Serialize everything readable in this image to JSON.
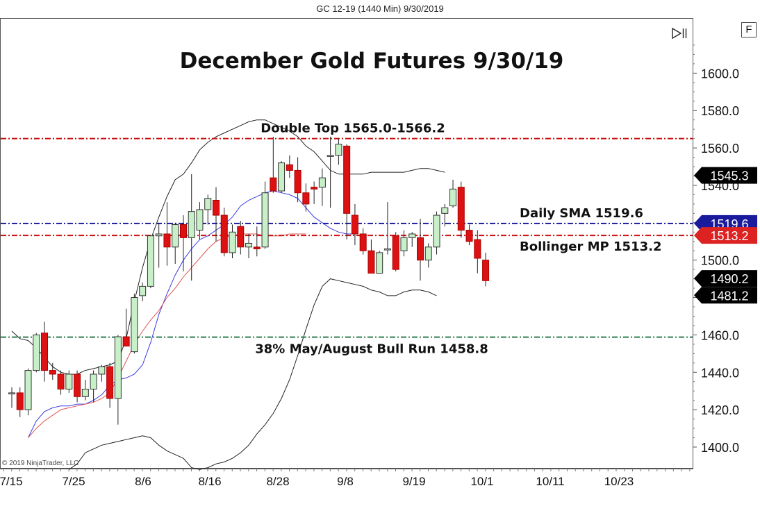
{
  "window_title": "GC 12-19 (1440 Min)  9/30/2019",
  "f_button_label": "F",
  "copyright": "© 2019 NinjaTrader, LLC",
  "colors": {
    "up_candle": "#c8f0c8",
    "down_candle": "#dd1111",
    "resistance_line": "#cc1111",
    "sma_line": "#1a1a9c",
    "fib_line": "#2e7d4f",
    "bollinger_band": "#222222",
    "sma_curve": "#3a3ae0",
    "ema_curve": "#e05555",
    "price_tag_black": "#000000",
    "price_tag_blue": "#1a1a9c",
    "price_tag_red": "#dd2222"
  },
  "icons": {
    "scroll_end": "scroll-to-end-icon"
  },
  "chart_data": {
    "type": "candlestick",
    "title": "December Gold Futures 9/30/19",
    "instrument": "GC 12-19",
    "x_tick_labels": [
      "7/15",
      "7/25",
      "8/6",
      "8/16",
      "8/28",
      "9/8",
      "9/19",
      "10/1",
      "10/11",
      "10/23"
    ],
    "y_tick_labels": [
      "1400.0",
      "1420.0",
      "1440.0",
      "1460.0",
      "1480.0",
      "1500.0",
      "1520.0",
      "1540.0",
      "1560.0",
      "1580.0",
      "1600.0"
    ],
    "ylim": [
      1387,
      1622
    ],
    "candles": [
      {
        "date": "7/17",
        "o": 1429,
        "h": 1432,
        "l": 1421,
        "c": 1429
      },
      {
        "date": "7/18",
        "o": 1429,
        "h": 1432,
        "l": 1416,
        "c": 1420
      },
      {
        "date": "7/19",
        "o": 1420,
        "h": 1442,
        "l": 1417,
        "c": 1441
      },
      {
        "date": "7/22",
        "o": 1441,
        "h": 1461,
        "l": 1440,
        "c": 1460
      },
      {
        "date": "7/23",
        "o": 1461,
        "h": 1467,
        "l": 1435,
        "c": 1441
      },
      {
        "date": "7/24",
        "o": 1441,
        "h": 1445,
        "l": 1436,
        "c": 1439
      },
      {
        "date": "7/25",
        "o": 1439,
        "h": 1441,
        "l": 1428,
        "c": 1431
      },
      {
        "date": "7/26",
        "o": 1431,
        "h": 1441,
        "l": 1429,
        "c": 1439
      },
      {
        "date": "7/29",
        "o": 1439,
        "h": 1441,
        "l": 1424,
        "c": 1427
      },
      {
        "date": "7/30",
        "o": 1427,
        "h": 1436,
        "l": 1425,
        "c": 1431
      },
      {
        "date": "7/31",
        "o": 1431,
        "h": 1441,
        "l": 1424,
        "c": 1439
      },
      {
        "date": "8/1",
        "o": 1439,
        "h": 1444,
        "l": 1435,
        "c": 1443
      },
      {
        "date": "8/2",
        "o": 1443,
        "h": 1445,
        "l": 1421,
        "c": 1426
      },
      {
        "date": "8/5",
        "o": 1426,
        "h": 1460,
        "l": 1412,
        "c": 1459
      },
      {
        "date": "8/6",
        "o": 1459,
        "h": 1474,
        "l": 1454,
        "c": 1454
      },
      {
        "date": "8/7",
        "o": 1451,
        "h": 1482,
        "l": 1450,
        "c": 1480
      },
      {
        "date": "8/8",
        "o": 1481,
        "h": 1488,
        "l": 1478,
        "c": 1486
      },
      {
        "date": "8/9",
        "o": 1486,
        "h": 1513,
        "l": 1485,
        "c": 1513
      },
      {
        "date": "8/12",
        "o": 1513,
        "h": 1520,
        "l": 1496,
        "c": 1514
      },
      {
        "date": "8/13",
        "o": 1514,
        "h": 1531,
        "l": 1497,
        "c": 1507
      },
      {
        "date": "8/14",
        "o": 1507,
        "h": 1520,
        "l": 1498,
        "c": 1519
      },
      {
        "date": "8/15",
        "o": 1519,
        "h": 1524,
        "l": 1494,
        "c": 1512
      },
      {
        "date": "8/16",
        "o": 1512,
        "h": 1546,
        "l": 1489,
        "c": 1526
      },
      {
        "date": "8/19",
        "o": 1516,
        "h": 1531,
        "l": 1511,
        "c": 1527
      },
      {
        "date": "8/20",
        "o": 1527,
        "h": 1535,
        "l": 1519,
        "c": 1533
      },
      {
        "date": "8/21",
        "o": 1532,
        "h": 1539,
        "l": 1510,
        "c": 1524
      },
      {
        "date": "8/22",
        "o": 1524,
        "h": 1528,
        "l": 1502,
        "c": 1504
      },
      {
        "date": "8/23",
        "o": 1504,
        "h": 1519,
        "l": 1501,
        "c": 1515
      },
      {
        "date": "8/26",
        "o": 1518,
        "h": 1521,
        "l": 1503,
        "c": 1507
      },
      {
        "date": "8/27",
        "o": 1507,
        "h": 1514,
        "l": 1501,
        "c": 1509
      },
      {
        "date": "8/28",
        "o": 1507,
        "h": 1518,
        "l": 1502,
        "c": 1506
      },
      {
        "date": "8/29",
        "o": 1507,
        "h": 1542,
        "l": 1506,
        "c": 1536
      },
      {
        "date": "8/30",
        "o": 1544,
        "h": 1566,
        "l": 1536,
        "c": 1537
      },
      {
        "date": "9/2",
        "o": 1537,
        "h": 1553,
        "l": 1536,
        "c": 1552
      },
      {
        "date": "9/3",
        "o": 1551,
        "h": 1556,
        "l": 1544,
        "c": 1548
      },
      {
        "date": "9/4",
        "o": 1548,
        "h": 1555,
        "l": 1531,
        "c": 1536
      },
      {
        "date": "9/5",
        "o": 1536,
        "h": 1541,
        "l": 1526,
        "c": 1530
      },
      {
        "date": "9/6",
        "o": 1539,
        "h": 1542,
        "l": 1530,
        "c": 1538
      },
      {
        "date": "9/9",
        "o": 1539,
        "h": 1549,
        "l": 1529,
        "c": 1544
      },
      {
        "date": "9/10",
        "o": 1556,
        "h": 1566,
        "l": 1528,
        "c": 1556
      },
      {
        "date": "9/11",
        "o": 1556,
        "h": 1565,
        "l": 1551,
        "c": 1562
      },
      {
        "date": "9/12",
        "o": 1561,
        "h": 1562,
        "l": 1511,
        "c": 1525
      },
      {
        "date": "9/13",
        "o": 1524,
        "h": 1530,
        "l": 1508,
        "c": 1514
      },
      {
        "date": "9/16",
        "o": 1514,
        "h": 1517,
        "l": 1503,
        "c": 1505
      },
      {
        "date": "9/17",
        "o": 1505,
        "h": 1511,
        "l": 1494,
        "c": 1493
      },
      {
        "date": "9/18",
        "o": 1493,
        "h": 1505,
        "l": 1493,
        "c": 1504
      },
      {
        "date": "9/19",
        "o": 1506,
        "h": 1531,
        "l": 1503,
        "c": 1506
      },
      {
        "date": "9/20",
        "o": 1513,
        "h": 1515,
        "l": 1494,
        "c": 1495
      },
      {
        "date": "9/23",
        "o": 1505,
        "h": 1516,
        "l": 1502,
        "c": 1512
      },
      {
        "date": "9/24",
        "o": 1512,
        "h": 1515,
        "l": 1507,
        "c": 1514
      },
      {
        "date": "9/25",
        "o": 1512,
        "h": 1522,
        "l": 1489,
        "c": 1500
      },
      {
        "date": "9/26",
        "o": 1500,
        "h": 1509,
        "l": 1496,
        "c": 1507
      },
      {
        "date": "9/27",
        "o": 1507,
        "h": 1526,
        "l": 1503,
        "c": 1524
      },
      {
        "date": "9/30",
        "o": 1525,
        "h": 1530,
        "l": 1518,
        "c": 1528
      },
      {
        "date": "10/1",
        "o": 1529,
        "h": 1543,
        "l": 1528,
        "c": 1538
      },
      {
        "date": "10/2",
        "o": 1539,
        "h": 1542,
        "l": 1512,
        "c": 1516
      },
      {
        "date": "10/3",
        "o": 1516,
        "h": 1519,
        "l": 1508,
        "c": 1510
      },
      {
        "date": "10/4",
        "o": 1511,
        "h": 1516,
        "l": 1493,
        "c": 1501
      },
      {
        "date": "10/7",
        "o": 1500,
        "h": 1504,
        "l": 1486,
        "c": 1489
      }
    ],
    "bollinger_upper": [
      1462,
      1458,
      1457,
      1453,
      1448,
      1443,
      1440,
      1439,
      1439,
      1441,
      1442,
      1443,
      1444,
      1446,
      1458,
      1478,
      1496,
      1511,
      1523,
      1534,
      1543,
      1546,
      1552,
      1559,
      1563,
      1566,
      1568,
      1570,
      1572,
      1574,
      1575,
      1575,
      1573,
      1571,
      1569,
      1566,
      1561,
      1558,
      1553,
      1548,
      1546,
      1546,
      1546,
      1546,
      1547,
      1547,
      1547,
      1547,
      1547,
      1548,
      1549,
      1549,
      1548,
      1547
    ],
    "bollinger_lower": [
      1388,
      1391,
      1397,
      1399,
      1401,
      1402,
      1403,
      1404,
      1405,
      1406,
      1405,
      1401,
      1398,
      1396,
      1394,
      1389,
      1388,
      1389,
      1391,
      1392,
      1394,
      1397,
      1401,
      1407,
      1412,
      1418,
      1426,
      1436,
      1449,
      1463,
      1476,
      1486,
      1490,
      1489,
      1488,
      1487,
      1486,
      1484,
      1483,
      1481,
      1481,
      1483,
      1484,
      1484,
      1483,
      1481
    ],
    "sma_curve": [
      1405,
      1414,
      1419,
      1421,
      1422,
      1422,
      1423,
      1423,
      1425,
      1428,
      1433,
      1436,
      1437,
      1439,
      1444,
      1456,
      1471,
      1482,
      1492,
      1500,
      1506,
      1511,
      1513,
      1516,
      1519,
      1523,
      1529,
      1532,
      1534,
      1536,
      1537,
      1536,
      1535,
      1533,
      1528,
      1523,
      1520,
      1517,
      1515,
      1514,
      1514
    ],
    "ema_curve": [
      1405,
      1410,
      1414,
      1417,
      1420,
      1421,
      1422,
      1423,
      1424,
      1426,
      1429,
      1437,
      1446,
      1455,
      1462,
      1468,
      1473,
      1480,
      1485,
      1491,
      1496,
      1501,
      1506,
      1510,
      1512,
      1513,
      1514,
      1514,
      1514,
      1513,
      1513,
      1513,
      1514,
      1514,
      1514
    ],
    "horizontal_lines": [
      {
        "name": "double-top-line",
        "value": 1565.0,
        "color": "#cc1111",
        "label": "Double Top 1565.0-1566.2"
      },
      {
        "name": "daily-sma-line",
        "value": 1519.6,
        "color": "#1a1a9c",
        "label": "Daily SMA 1519.6"
      },
      {
        "name": "bollinger-mp-line",
        "value": 1513.2,
        "color": "#cc1111",
        "label": "Bollinger MP 1513.2"
      },
      {
        "name": "fib-line",
        "value": 1458.8,
        "color": "#2e7d4f",
        "label": "38% May/August Bull Run 1458.8"
      }
    ],
    "price_tags": [
      {
        "name": "price-tag-1545",
        "label": "1545.3",
        "value": 1545.3,
        "color": "#000000"
      },
      {
        "name": "price-tag-1519",
        "label": "1519.6",
        "value": 1519.6,
        "color": "#1a1a9c"
      },
      {
        "name": "price-tag-1513",
        "label": "1513.2",
        "value": 1513.2,
        "color": "#dd2222"
      },
      {
        "name": "price-tag-1490",
        "label": "1490.2",
        "value": 1490.2,
        "color": "#000000"
      },
      {
        "name": "price-tag-1481",
        "label": "1481.2",
        "value": 1481.2,
        "color": "#000000"
      }
    ]
  }
}
